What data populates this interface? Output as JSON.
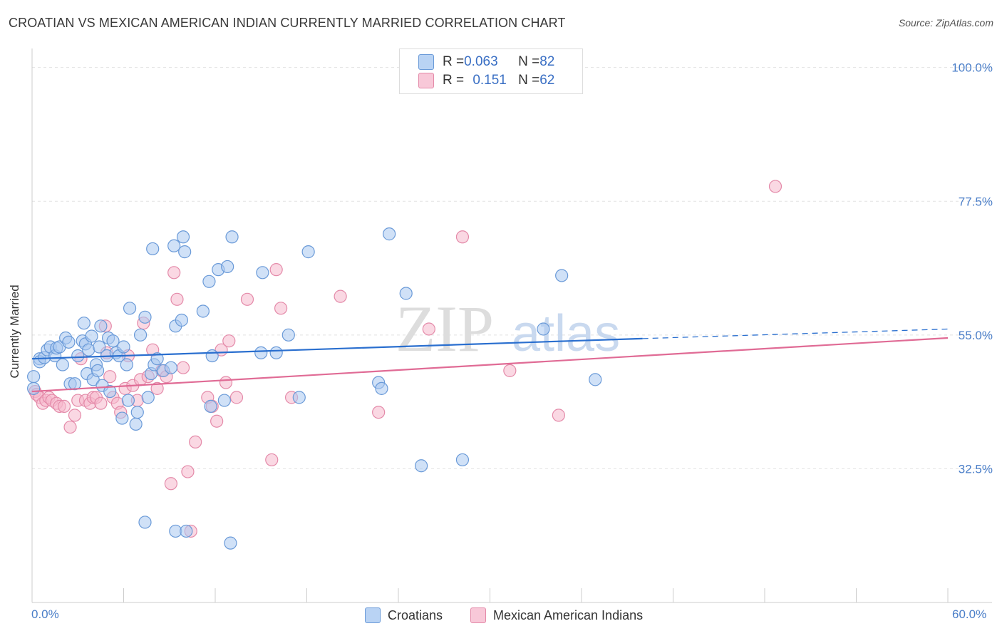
{
  "title": "CROATIAN VS MEXICAN AMERICAN INDIAN CURRENTLY MARRIED CORRELATION CHART",
  "source": "Source: ZipAtlas.com",
  "watermark": {
    "zip": "ZIP",
    "atlas": "atlas"
  },
  "legend_top": {
    "rows": [
      {
        "r_label": "R = ",
        "r_value": "0.063",
        "n_label": "N = ",
        "n_value": "82"
      },
      {
        "r_label": "R = ",
        "r_value": "0.151",
        "n_label": "N = ",
        "n_value": "62"
      }
    ]
  },
  "legend_bottom": {
    "items": [
      "Croatians",
      "Mexican American Indians"
    ]
  },
  "colors": {
    "blue_fill": "#a9c8f0",
    "blue_stroke": "#6a9ad8",
    "blue_line": "#2a6fcf",
    "pink_fill": "#f5b8cc",
    "pink_stroke": "#e48aa9",
    "pink_line": "#e06b95",
    "tick_text": "#4a7ec8",
    "grid": "#e2e2e2"
  },
  "chart_data": {
    "type": "scatter",
    "title": "CROATIAN VS MEXICAN AMERICAN INDIAN CURRENTLY MARRIED CORRELATION CHART",
    "xlabel": "",
    "ylabel": "Currently Married",
    "xlim": [
      0,
      60
    ],
    "ylim": [
      10,
      102
    ],
    "x_tick_labels": [
      "0.0%",
      "60.0%"
    ],
    "y_ticks": [
      32.5,
      55.0,
      77.5,
      100.0
    ],
    "y_tick_labels": [
      "32.5%",
      "55.0%",
      "77.5%",
      "100.0%"
    ],
    "grid": true,
    "series": [
      {
        "name": "Croatians",
        "r": 0.063,
        "n": 82,
        "trend": {
          "x0": 0,
          "y0": 51.0,
          "x1": 40,
          "y1": 54.4,
          "dash_to_x": 60,
          "dash_to_y": 56.0
        },
        "points": [
          [
            0.1,
            48.0
          ],
          [
            0.1,
            46.0
          ],
          [
            0.5,
            51.0
          ],
          [
            0.5,
            50.5
          ],
          [
            0.8,
            51.2
          ],
          [
            1.0,
            52.5
          ],
          [
            1.2,
            53.0
          ],
          [
            1.5,
            51.5
          ],
          [
            1.6,
            52.8
          ],
          [
            1.8,
            53.0
          ],
          [
            2.0,
            50.0
          ],
          [
            2.2,
            54.5
          ],
          [
            2.4,
            53.8
          ],
          [
            2.5,
            46.8
          ],
          [
            2.8,
            46.8
          ],
          [
            3.0,
            51.5
          ],
          [
            3.3,
            54.0
          ],
          [
            3.5,
            53.5
          ],
          [
            3.4,
            57.0
          ],
          [
            3.6,
            48.5
          ],
          [
            3.7,
            52.5
          ],
          [
            3.9,
            54.8
          ],
          [
            4.0,
            47.5
          ],
          [
            4.2,
            50.0
          ],
          [
            4.3,
            49.0
          ],
          [
            4.4,
            53.0
          ],
          [
            4.5,
            56.5
          ],
          [
            4.6,
            46.5
          ],
          [
            4.9,
            51.5
          ],
          [
            5.0,
            54.5
          ],
          [
            5.1,
            45.5
          ],
          [
            5.3,
            54.0
          ],
          [
            5.5,
            52.0
          ],
          [
            5.7,
            51.5
          ],
          [
            5.9,
            41.0
          ],
          [
            6.0,
            53.0
          ],
          [
            6.2,
            50.0
          ],
          [
            6.3,
            44.0
          ],
          [
            6.4,
            59.5
          ],
          [
            6.8,
            40.0
          ],
          [
            6.9,
            42.0
          ],
          [
            7.1,
            55.0
          ],
          [
            7.4,
            58.0
          ],
          [
            7.6,
            44.5
          ],
          [
            7.8,
            48.5
          ],
          [
            7.9,
            69.5
          ],
          [
            8.0,
            50.0
          ],
          [
            8.2,
            51.0
          ],
          [
            8.6,
            49.0
          ],
          [
            9.1,
            49.5
          ],
          [
            9.3,
            70.0
          ],
          [
            9.4,
            56.5
          ],
          [
            9.8,
            57.5
          ],
          [
            9.9,
            71.5
          ],
          [
            10.0,
            69.0
          ],
          [
            11.2,
            59.0
          ],
          [
            11.6,
            64.0
          ],
          [
            11.8,
            51.5
          ],
          [
            12.2,
            66.0
          ],
          [
            12.6,
            44.0
          ],
          [
            12.8,
            66.5
          ],
          [
            13.1,
            71.5
          ],
          [
            15.0,
            52.0
          ],
          [
            15.1,
            65.5
          ],
          [
            16.0,
            52.0
          ],
          [
            16.8,
            55.0
          ],
          [
            17.5,
            44.5
          ],
          [
            18.1,
            69.0
          ],
          [
            22.7,
            47.0
          ],
          [
            22.9,
            46.0
          ],
          [
            23.4,
            72.0
          ],
          [
            24.5,
            62.0
          ],
          [
            25.5,
            33.0
          ],
          [
            28.2,
            34.0
          ],
          [
            33.5,
            56.0
          ],
          [
            34.7,
            65.0
          ],
          [
            36.9,
            47.5
          ],
          [
            7.4,
            23.5
          ],
          [
            9.4,
            22.0
          ],
          [
            10.1,
            22.0
          ],
          [
            13.0,
            20.0
          ],
          [
            11.7,
            43.0
          ]
        ]
      },
      {
        "name": "Mexican American Indians",
        "r": 0.151,
        "n": 62,
        "trend": {
          "x0": 0,
          "y0": 45.5,
          "x1": 60,
          "y1": 54.5
        },
        "points": [
          [
            0.2,
            45.5
          ],
          [
            0.3,
            45.0
          ],
          [
            0.5,
            44.5
          ],
          [
            0.7,
            43.5
          ],
          [
            0.9,
            44.0
          ],
          [
            1.1,
            44.5
          ],
          [
            1.3,
            44.0
          ],
          [
            1.6,
            43.5
          ],
          [
            1.8,
            43.0
          ],
          [
            2.1,
            43.0
          ],
          [
            2.5,
            39.5
          ],
          [
            2.8,
            41.5
          ],
          [
            3.0,
            44.0
          ],
          [
            3.2,
            51.0
          ],
          [
            3.5,
            44.0
          ],
          [
            3.8,
            43.5
          ],
          [
            4.0,
            44.5
          ],
          [
            4.2,
            44.5
          ],
          [
            4.5,
            43.5
          ],
          [
            4.8,
            56.5
          ],
          [
            4.9,
            52.0
          ],
          [
            5.1,
            48.0
          ],
          [
            5.3,
            44.5
          ],
          [
            5.6,
            43.5
          ],
          [
            5.8,
            42.0
          ],
          [
            6.1,
            46.0
          ],
          [
            6.3,
            51.5
          ],
          [
            6.6,
            46.5
          ],
          [
            6.9,
            44.0
          ],
          [
            7.1,
            47.5
          ],
          [
            7.3,
            57.0
          ],
          [
            7.6,
            48.0
          ],
          [
            7.9,
            52.5
          ],
          [
            8.2,
            46.0
          ],
          [
            8.5,
            49.0
          ],
          [
            8.8,
            48.0
          ],
          [
            9.1,
            30.0
          ],
          [
            9.3,
            65.5
          ],
          [
            9.5,
            61.0
          ],
          [
            9.9,
            49.5
          ],
          [
            10.2,
            32.0
          ],
          [
            10.4,
            22.0
          ],
          [
            10.7,
            37.0
          ],
          [
            11.5,
            44.5
          ],
          [
            11.8,
            43.0
          ],
          [
            12.1,
            40.5
          ],
          [
            12.4,
            52.5
          ],
          [
            12.7,
            47.0
          ],
          [
            12.9,
            54.0
          ],
          [
            13.4,
            44.5
          ],
          [
            14.1,
            61.0
          ],
          [
            15.7,
            34.0
          ],
          [
            16.0,
            66.0
          ],
          [
            16.3,
            59.5
          ],
          [
            17.0,
            44.5
          ],
          [
            20.2,
            61.5
          ],
          [
            22.7,
            42.0
          ],
          [
            26.0,
            56.0
          ],
          [
            28.2,
            71.5
          ],
          [
            31.3,
            49.0
          ],
          [
            34.5,
            41.5
          ],
          [
            48.7,
            80.0
          ]
        ]
      }
    ]
  }
}
